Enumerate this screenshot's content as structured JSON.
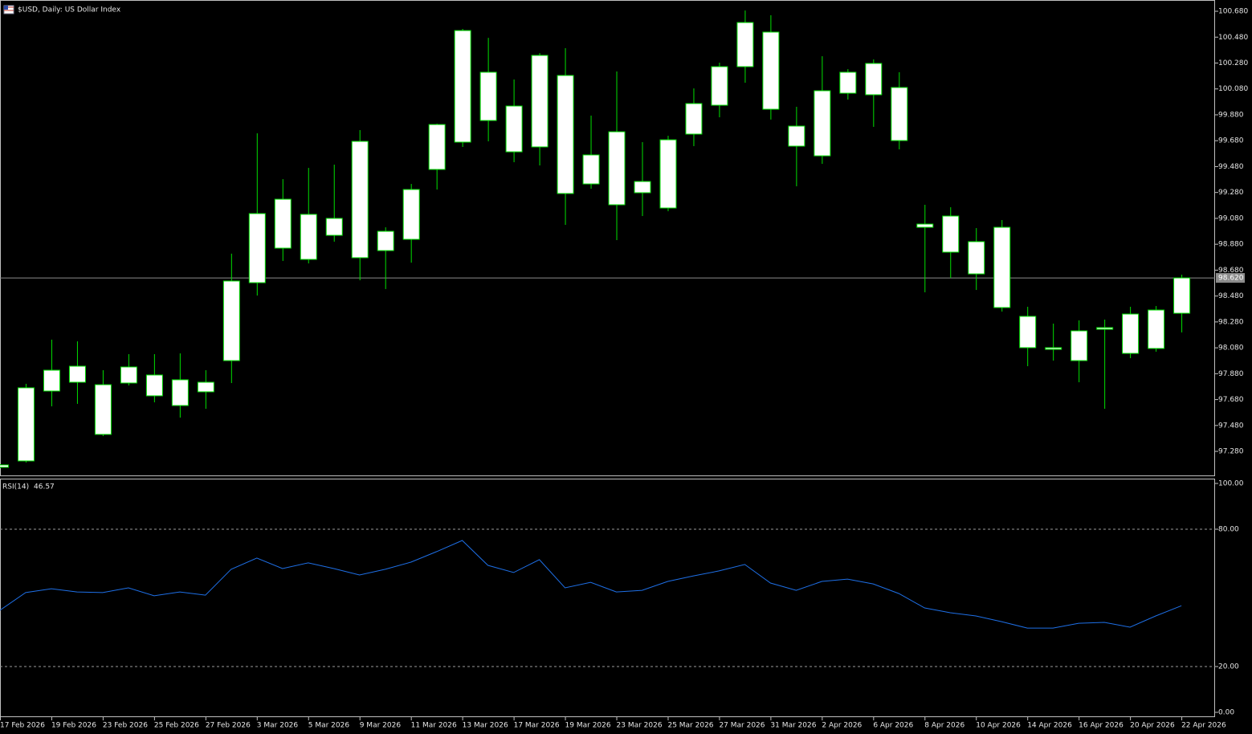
{
  "chart_data": [
    {
      "type": "candlestick",
      "title": "$USD, Daily:  US Dollar Index",
      "categories": [
        "17 Feb 2026",
        null,
        "19 Feb 2026",
        null,
        "23 Feb 2026",
        null,
        "25 Feb 2026",
        null,
        "27 Feb 2026",
        null,
        "3 Mar 2026",
        null,
        "5 Mar 2026",
        null,
        "9 Mar 2026",
        null,
        "11 Mar 2026",
        null,
        "13 Mar 2026",
        null,
        "17 Mar 2026",
        null,
        "19 Mar 2026",
        null,
        "23 Mar 2026",
        null,
        "25 Mar 2026",
        null,
        "27 Mar 2026",
        null,
        "31 Mar 2026",
        null,
        "2 Apr 2026",
        null,
        "6 Apr 2026",
        null,
        "8 Apr 2026",
        null,
        "10 Apr 2026",
        null,
        "14 Apr 2026",
        null,
        "16 Apr 2026",
        null,
        "20 Apr 2026",
        null,
        "22 Apr 2026"
      ],
      "open": [
        97.175,
        97.206,
        97.746,
        97.938,
        97.795,
        97.808,
        97.87,
        97.634,
        97.814,
        97.981,
        98.583,
        99.228,
        98.763,
        98.949,
        98.776,
        98.98,
        98.918,
        99.458,
        99.669,
        100.209,
        99.948,
        99.632,
        100.184,
        99.346,
        99.749,
        99.278,
        99.16,
        99.731,
        99.954,
        100.252,
        100.519,
        99.793,
        99.563,
        100.047,
        100.277,
        100.091,
        99.036,
        99.098,
        98.9,
        99.011,
        98.323,
        98.081,
        97.981,
        98.223,
        98.037,
        98.075,
        98.347
      ],
      "high": [
        97.181,
        97.802,
        98.143,
        98.13,
        97.907,
        98.031,
        98.031,
        98.037,
        97.907,
        98.807,
        99.737,
        99.383,
        99.47,
        99.495,
        99.762,
        99.011,
        99.346,
        99.812,
        100.544,
        100.475,
        100.153,
        100.357,
        100.395,
        99.874,
        100.215,
        99.669,
        99.718,
        100.084,
        100.283,
        100.686,
        100.649,
        99.942,
        100.333,
        100.233,
        100.308,
        100.209,
        99.185,
        99.166,
        99.005,
        99.067,
        98.397,
        98.267,
        98.292,
        98.298,
        98.397,
        98.403,
        98.645
      ],
      "low": [
        97.15,
        97.194,
        97.628,
        97.647,
        97.398,
        97.789,
        97.659,
        97.541,
        97.609,
        97.808,
        98.484,
        98.751,
        98.732,
        98.9,
        98.602,
        98.534,
        98.738,
        99.303,
        99.632,
        99.675,
        99.514,
        99.489,
        99.03,
        99.309,
        98.912,
        99.098,
        99.135,
        99.638,
        99.861,
        100.128,
        99.843,
        99.328,
        99.501,
        99.998,
        99.787,
        99.613,
        98.509,
        98.62,
        98.527,
        98.36,
        97.938,
        97.981,
        97.814,
        97.609,
        98.0,
        98.05,
        98.199
      ],
      "close": [
        97.157,
        97.771,
        97.907,
        97.814,
        97.411,
        97.932,
        97.709,
        97.833,
        97.74,
        98.596,
        99.117,
        98.85,
        99.111,
        99.08,
        99.675,
        98.831,
        99.303,
        99.805,
        100.531,
        99.836,
        99.594,
        100.339,
        99.272,
        99.57,
        99.185,
        99.365,
        99.687,
        99.967,
        100.252,
        100.593,
        99.923,
        99.638,
        100.066,
        100.209,
        100.035,
        99.681,
        99.011,
        98.819,
        98.651,
        98.391,
        98.081,
        98.068,
        98.211,
        98.236,
        98.341,
        98.372,
        98.62
      ],
      "color": "#00e000",
      "body_color": "#ffffff",
      "ylim": [
        97.088,
        100.767
      ],
      "yticks": [
        {
          "value": 97.28,
          "label": "97.280"
        },
        {
          "value": 97.48,
          "label": "97.480"
        },
        {
          "value": 97.68,
          "label": "97.680"
        },
        {
          "value": 97.88,
          "label": "97.880"
        },
        {
          "value": 98.08,
          "label": "98.080"
        },
        {
          "value": 98.28,
          "label": "98.280"
        },
        {
          "value": 98.48,
          "label": "98.480"
        },
        {
          "value": 98.68,
          "label": "98.680"
        },
        {
          "value": 98.88,
          "label": "98.880"
        },
        {
          "value": 99.08,
          "label": "99.080"
        },
        {
          "value": 99.28,
          "label": "99.280"
        },
        {
          "value": 99.48,
          "label": "99.480"
        },
        {
          "value": 99.68,
          "label": "99.680"
        },
        {
          "value": 99.88,
          "label": "99.880"
        },
        {
          "value": 100.08,
          "label": "100.080"
        },
        {
          "value": 100.28,
          "label": "100.280"
        },
        {
          "value": 100.48,
          "label": "100.480"
        },
        {
          "value": 100.68,
          "label": "100.680"
        }
      ],
      "last_price": {
        "value": 98.62,
        "label": "98.620"
      }
    },
    {
      "type": "line",
      "title": "RSI(14)",
      "values": [
        44.6,
        52.3,
        54.0,
        52.6,
        52.3,
        54.4,
        50.9,
        52.6,
        51.2,
        62.5,
        67.4,
        62.8,
        65.3,
        62.8,
        60.0,
        62.5,
        65.6,
        70.2,
        75.1,
        64.2,
        61.1,
        66.7,
        54.4,
        56.8,
        52.6,
        53.3,
        57.2,
        59.6,
        61.8,
        64.6,
        56.5,
        53.3,
        57.2,
        58.2,
        56.1,
        51.9,
        45.6,
        43.5,
        42.1,
        39.6,
        36.8,
        36.8,
        38.9,
        39.3,
        37.2,
        42.1,
        46.57
      ],
      "color": "#1e6fe6",
      "ylim": [
        0,
        100
      ],
      "yticks": [
        {
          "value": 0,
          "label": "0.00"
        },
        {
          "value": 20,
          "label": "20.00"
        },
        {
          "value": 80,
          "label": "80.00"
        },
        {
          "value": 100,
          "label": "100.00"
        }
      ]
    }
  ]
}
